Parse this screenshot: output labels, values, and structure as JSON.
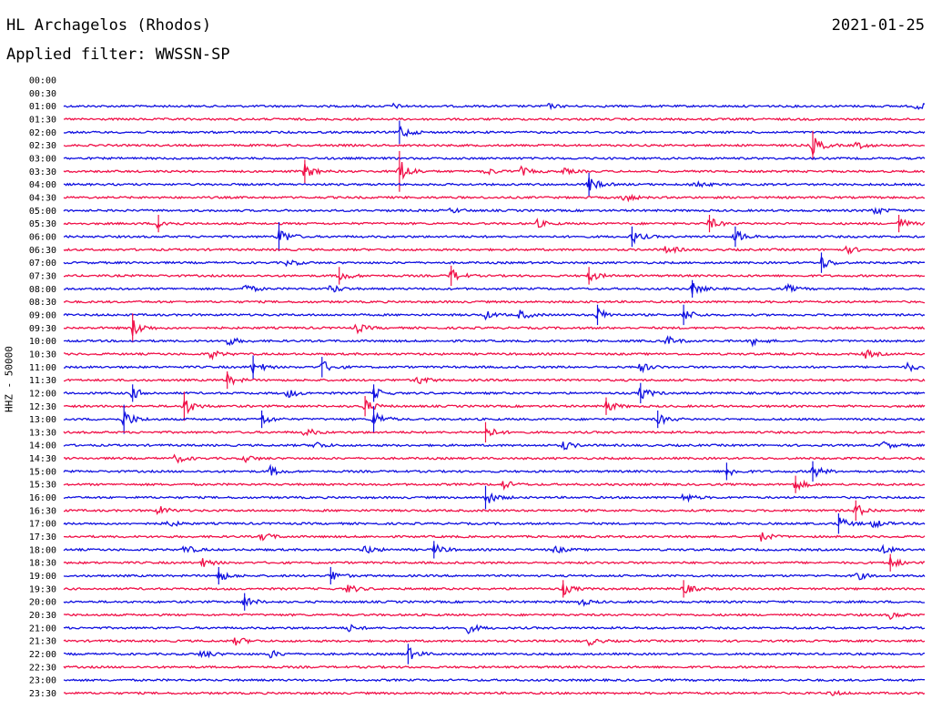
{
  "header": {
    "station": "HL Archagelos (Rhodos)",
    "date": "2021-01-25",
    "filter": "Applied filter: WWSSN-SP"
  },
  "chart_data": {
    "type": "line",
    "title": "HL Archagelos (Rhodos)",
    "ylabel": "HHZ - 50000",
    "xlabel": "",
    "grid": false,
    "row_labels": [
      "00:00",
      "00:30",
      "01:00",
      "01:30",
      "02:00",
      "02:30",
      "03:00",
      "03:30",
      "04:00",
      "04:30",
      "05:00",
      "05:30",
      "06:00",
      "06:30",
      "07:00",
      "07:30",
      "08:00",
      "08:30",
      "09:00",
      "09:30",
      "10:00",
      "10:30",
      "11:00",
      "11:30",
      "12:00",
      "12:30",
      "13:00",
      "13:30",
      "14:00",
      "14:30",
      "15:00",
      "15:30",
      "16:00",
      "16:30",
      "17:00",
      "17:30",
      "18:00",
      "18:30",
      "19:00",
      "19:30",
      "20:00",
      "20:30",
      "21:00",
      "21:30",
      "22:00",
      "22:30",
      "23:00",
      "23:30"
    ],
    "colors": [
      "#1010e0",
      "#f01048"
    ],
    "trace_start_row": 2,
    "events": [
      [
        2,
        0.38,
        3
      ],
      [
        2,
        0.56,
        3
      ],
      [
        2,
        0.99,
        4
      ],
      [
        4,
        0.39,
        8
      ],
      [
        5,
        0.87,
        10
      ],
      [
        5,
        0.92,
        4
      ],
      [
        7,
        0.28,
        8
      ],
      [
        7,
        0.39,
        14
      ],
      [
        7,
        0.49,
        4
      ],
      [
        7,
        0.53,
        5
      ],
      [
        7,
        0.58,
        3
      ],
      [
        8,
        0.61,
        8
      ],
      [
        8,
        0.73,
        5
      ],
      [
        9,
        0.65,
        5
      ],
      [
        10,
        0.45,
        3
      ],
      [
        10,
        0.94,
        5
      ],
      [
        11,
        0.11,
        6
      ],
      [
        11,
        0.55,
        4
      ],
      [
        11,
        0.75,
        6
      ],
      [
        11,
        0.97,
        6
      ],
      [
        12,
        0.25,
        10
      ],
      [
        12,
        0.66,
        7
      ],
      [
        12,
        0.78,
        7
      ],
      [
        13,
        0.7,
        5
      ],
      [
        13,
        0.91,
        4
      ],
      [
        14,
        0.26,
        4
      ],
      [
        14,
        0.88,
        7
      ],
      [
        15,
        0.32,
        6
      ],
      [
        15,
        0.45,
        7
      ],
      [
        15,
        0.61,
        6
      ],
      [
        16,
        0.21,
        5
      ],
      [
        16,
        0.31,
        5
      ],
      [
        16,
        0.73,
        6
      ],
      [
        16,
        0.84,
        4
      ],
      [
        18,
        0.49,
        4
      ],
      [
        18,
        0.53,
        5
      ],
      [
        18,
        0.62,
        7
      ],
      [
        18,
        0.72,
        7
      ],
      [
        19,
        0.08,
        10
      ],
      [
        19,
        0.34,
        5
      ],
      [
        20,
        0.19,
        5
      ],
      [
        20,
        0.7,
        5
      ],
      [
        20,
        0.8,
        4
      ],
      [
        21,
        0.17,
        5
      ],
      [
        21,
        0.93,
        5
      ],
      [
        22,
        0.22,
        8
      ],
      [
        22,
        0.3,
        7
      ],
      [
        22,
        0.67,
        5
      ],
      [
        22,
        0.98,
        5
      ],
      [
        23,
        0.19,
        6
      ],
      [
        23,
        0.41,
        5
      ],
      [
        24,
        0.08,
        6
      ],
      [
        24,
        0.26,
        5
      ],
      [
        24,
        0.36,
        6
      ],
      [
        24,
        0.67,
        7
      ],
      [
        25,
        0.14,
        10
      ],
      [
        25,
        0.35,
        7
      ],
      [
        25,
        0.63,
        6
      ],
      [
        26,
        0.07,
        10
      ],
      [
        26,
        0.23,
        6
      ],
      [
        26,
        0.36,
        9
      ],
      [
        26,
        0.69,
        6
      ],
      [
        27,
        0.49,
        7
      ],
      [
        27,
        0.28,
        5
      ],
      [
        28,
        0.29,
        5
      ],
      [
        28,
        0.58,
        5
      ],
      [
        28,
        0.95,
        5
      ],
      [
        29,
        0.13,
        5
      ],
      [
        29,
        0.21,
        4
      ],
      [
        30,
        0.24,
        5
      ],
      [
        30,
        0.77,
        6
      ],
      [
        30,
        0.87,
        7
      ],
      [
        31,
        0.51,
        5
      ],
      [
        31,
        0.85,
        6
      ],
      [
        32,
        0.49,
        8
      ],
      [
        32,
        0.72,
        5
      ],
      [
        33,
        0.11,
        5
      ],
      [
        33,
        0.92,
        7
      ],
      [
        34,
        0.12,
        4
      ],
      [
        34,
        0.9,
        7
      ],
      [
        34,
        0.94,
        5
      ],
      [
        35,
        0.23,
        5
      ],
      [
        35,
        0.81,
        5
      ],
      [
        36,
        0.14,
        5
      ],
      [
        36,
        0.35,
        5
      ],
      [
        36,
        0.43,
        6
      ],
      [
        36,
        0.57,
        4
      ],
      [
        36,
        0.95,
        5
      ],
      [
        37,
        0.16,
        5
      ],
      [
        37,
        0.96,
        6
      ],
      [
        38,
        0.18,
        6
      ],
      [
        38,
        0.31,
        6
      ],
      [
        38,
        0.92,
        5
      ],
      [
        39,
        0.33,
        5
      ],
      [
        39,
        0.58,
        6
      ],
      [
        39,
        0.72,
        6
      ],
      [
        40,
        0.21,
        6
      ],
      [
        40,
        0.6,
        4
      ],
      [
        41,
        0.96,
        4
      ],
      [
        42,
        0.33,
        4
      ],
      [
        42,
        0.47,
        5
      ],
      [
        43,
        0.2,
        5
      ],
      [
        43,
        0.61,
        4
      ],
      [
        44,
        0.16,
        5
      ],
      [
        44,
        0.24,
        4
      ],
      [
        44,
        0.4,
        7
      ],
      [
        47,
        0.89,
        3
      ]
    ]
  }
}
